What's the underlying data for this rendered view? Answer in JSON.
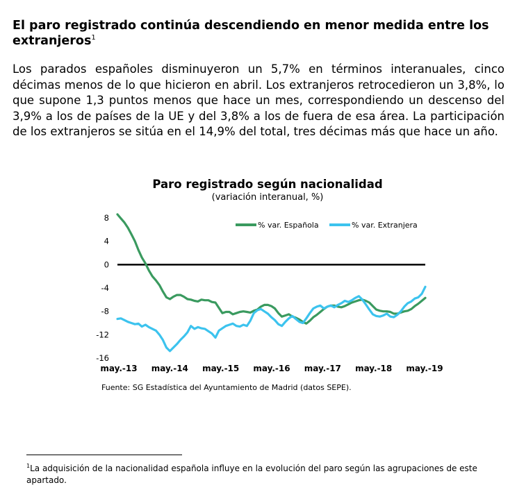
{
  "heading": {
    "text": "El paro registrado continúa descendiendo en menor medida entre los extranjeros",
    "footnote_ref": "1"
  },
  "paragraph": "Los parados españoles disminuyeron un 5,7% en términos interanuales, cinco décimas menos de lo que hicieron en abril. Los extranjeros retrocedieron un 3,8%, lo que supone 1,3 puntos menos que hace un mes, correspondiendo un descenso del 3,9% a los de países de la UE y del 3,8% a los de fuera de esa área. La participación de los extranjeros se sitúa en el 14,9% del total, tres décimas más que hace un año.",
  "chart_data": {
    "type": "line",
    "title": "Paro registrado según nacionalidad",
    "subtitle": "(variación interanual, %)",
    "ylim": [
      -16,
      8
    ],
    "y_ticks": [
      "8",
      "4",
      "0",
      "-4",
      "-8",
      "-12",
      "-16"
    ],
    "x_tick_labels": [
      "may.-13",
      "may.-14",
      "may.-15",
      "may.-16",
      "may.-17",
      "may.-18",
      "may.-19"
    ],
    "zero_line": true,
    "legend_position": "top-right",
    "series": [
      {
        "name": "% var. Española",
        "color": "#3a9a5f",
        "values": [
          8.6,
          7.9,
          7.2,
          6.3,
          5.2,
          4.0,
          2.5,
          1.2,
          0.2,
          -1.0,
          -2.0,
          -2.7,
          -3.5,
          -4.6,
          -5.6,
          -5.9,
          -5.5,
          -5.2,
          -5.2,
          -5.5,
          -5.9,
          -6.0,
          -6.2,
          -6.3,
          -6.0,
          -6.1,
          -6.1,
          -6.4,
          -6.5,
          -7.4,
          -8.3,
          -8.1,
          -8.1,
          -8.5,
          -8.3,
          -8.1,
          -8.0,
          -8.1,
          -8.2,
          -7.9,
          -7.7,
          -7.2,
          -6.9,
          -6.9,
          -7.1,
          -7.5,
          -8.3,
          -8.9,
          -8.7,
          -8.5,
          -8.9,
          -9.1,
          -9.4,
          -9.8,
          -10.1,
          -9.6,
          -9.0,
          -8.6,
          -8.1,
          -7.6,
          -7.2,
          -7.0,
          -7.0,
          -7.2,
          -7.3,
          -7.1,
          -6.8,
          -6.5,
          -6.3,
          -6.1,
          -6.0,
          -6.2,
          -6.5,
          -7.1,
          -7.7,
          -7.9,
          -8.0,
          -8.0,
          -8.1,
          -8.4,
          -8.4,
          -8.2,
          -8.0,
          -7.9,
          -7.6,
          -7.1,
          -6.7,
          -6.2,
          -5.7
        ]
      },
      {
        "name": "% var. Extranjera",
        "color": "#3cc3ee",
        "values": [
          -9.3,
          -9.2,
          -9.5,
          -9.8,
          -10.0,
          -10.2,
          -10.1,
          -10.6,
          -10.3,
          -10.7,
          -11.0,
          -11.3,
          -12.0,
          -12.9,
          -14.2,
          -14.8,
          -14.2,
          -13.6,
          -12.9,
          -12.3,
          -11.6,
          -10.5,
          -11.0,
          -10.7,
          -10.9,
          -11.0,
          -11.4,
          -11.8,
          -12.5,
          -11.3,
          -10.9,
          -10.5,
          -10.3,
          -10.1,
          -10.5,
          -10.6,
          -10.3,
          -10.5,
          -9.6,
          -8.3,
          -7.8,
          -7.6,
          -8.0,
          -8.4,
          -9.0,
          -9.5,
          -10.2,
          -10.5,
          -9.8,
          -9.2,
          -8.8,
          -9.3,
          -9.8,
          -10.0,
          -9.2,
          -8.3,
          -7.5,
          -7.2,
          -7.0,
          -7.5,
          -7.2,
          -7.0,
          -7.3,
          -6.9,
          -6.6,
          -6.2,
          -6.4,
          -6.1,
          -5.7,
          -5.4,
          -6.0,
          -6.8,
          -7.7,
          -8.5,
          -8.8,
          -8.9,
          -8.7,
          -8.4,
          -8.9,
          -9.0,
          -8.6,
          -8.0,
          -7.2,
          -6.6,
          -6.3,
          -5.8,
          -5.6,
          -5.0,
          -3.8
        ]
      }
    ]
  },
  "source": "Fuente: SG Estadística del Ayuntamiento de Madrid (datos SEPE).",
  "footnote": {
    "marker": "1",
    "text": "La adquisición de la nacionalidad española influye en la evolución del paro según las agrupaciones de este apartado."
  }
}
